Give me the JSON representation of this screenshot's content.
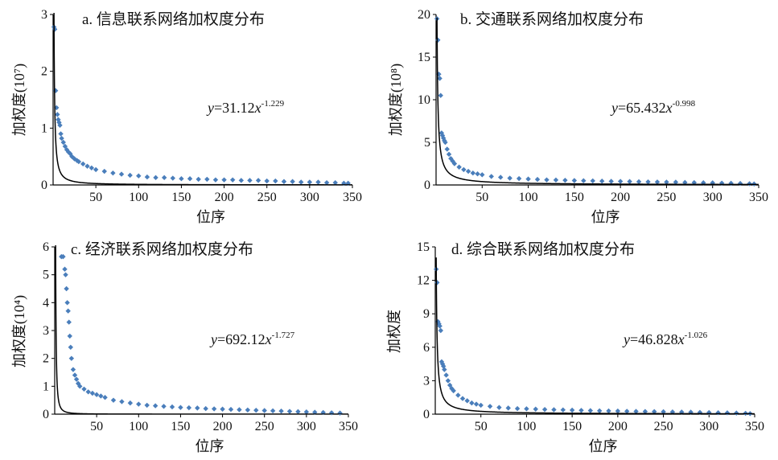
{
  "chart_data": [
    {
      "type": "scatter",
      "title": "a. 信息联系网络加权度分布",
      "xlabel": "位序",
      "ylabel": "加权度(10⁷)",
      "xlim": [
        0,
        350
      ],
      "ylim": [
        0,
        3
      ],
      "xticks": [
        50,
        100,
        150,
        200,
        250,
        300,
        350
      ],
      "yticks": [
        0,
        1,
        2,
        3
      ],
      "equation": {
        "lhs": "y",
        "eq": "=31.12",
        "var": "x",
        "exp": "-1.229"
      },
      "fit": {
        "a": 31.12,
        "b": -1.229,
        "scale": 0.1
      },
      "series": [
        {
          "x": [
            1,
            2,
            3,
            4,
            5,
            6,
            7,
            8,
            9,
            10,
            12,
            14,
            16,
            18,
            20,
            22,
            25,
            28,
            30,
            35,
            40,
            45,
            50,
            60,
            70,
            80,
            90,
            100,
            110,
            120,
            130,
            140,
            150,
            160,
            170,
            180,
            190,
            200,
            210,
            220,
            230,
            240,
            250,
            260,
            270,
            280,
            290,
            300,
            310,
            320,
            330,
            340,
            345
          ],
          "y": [
            2.78,
            2.74,
            1.66,
            1.36,
            1.24,
            1.15,
            1.1,
            1.05,
            0.9,
            0.82,
            0.75,
            0.68,
            0.62,
            0.58,
            0.55,
            0.5,
            0.46,
            0.43,
            0.41,
            0.37,
            0.33,
            0.3,
            0.27,
            0.24,
            0.21,
            0.19,
            0.17,
            0.16,
            0.14,
            0.13,
            0.13,
            0.12,
            0.11,
            0.11,
            0.1,
            0.1,
            0.09,
            0.09,
            0.09,
            0.08,
            0.08,
            0.08,
            0.07,
            0.07,
            0.06,
            0.06,
            0.05,
            0.05,
            0.05,
            0.04,
            0.04,
            0.03,
            0.03
          ]
        }
      ]
    },
    {
      "type": "scatter",
      "title": "b. 交通联系网络加权度分布",
      "xlabel": "位序",
      "ylabel": "加权度(10⁸)",
      "xlim": [
        0,
        350
      ],
      "ylim": [
        0,
        20
      ],
      "xticks": [
        50,
        100,
        150,
        200,
        250,
        300,
        350
      ],
      "yticks": [
        0,
        5,
        10,
        15,
        20
      ],
      "equation": {
        "lhs": "y",
        "eq": "=65.432",
        "var": "x",
        "exp": "-0.998"
      },
      "fit": {
        "a": 65.432,
        "b": -0.998,
        "scale": 0.3
      },
      "series": [
        {
          "x": [
            1,
            2,
            3,
            4,
            5,
            6,
            7,
            8,
            9,
            10,
            12,
            14,
            16,
            18,
            20,
            25,
            30,
            35,
            40,
            45,
            50,
            60,
            70,
            80,
            90,
            100,
            110,
            120,
            130,
            140,
            150,
            160,
            170,
            180,
            190,
            200,
            210,
            220,
            230,
            240,
            250,
            260,
            270,
            280,
            290,
            300,
            310,
            320,
            330,
            340,
            345
          ],
          "y": [
            19.5,
            17.0,
            13.0,
            12.5,
            10.5,
            6.1,
            5.8,
            5.5,
            5.2,
            5.0,
            4.2,
            3.6,
            3.1,
            2.8,
            2.5,
            2.1,
            1.8,
            1.6,
            1.4,
            1.3,
            1.2,
            1.0,
            0.9,
            0.8,
            0.75,
            0.7,
            0.65,
            0.6,
            0.58,
            0.55,
            0.52,
            0.5,
            0.48,
            0.45,
            0.43,
            0.42,
            0.4,
            0.38,
            0.36,
            0.35,
            0.34,
            0.33,
            0.3,
            0.28,
            0.26,
            0.25,
            0.22,
            0.2,
            0.18,
            0.15,
            0.12
          ]
        }
      ]
    },
    {
      "type": "scatter",
      "title": "c. 经济联系网络加权度分布",
      "xlabel": "位序",
      "ylabel": "加权度(10⁴)",
      "xlim": [
        0,
        350
      ],
      "ylim": [
        0,
        6
      ],
      "xticks": [
        50,
        100,
        150,
        200,
        250,
        300,
        350
      ],
      "yticks": [
        0,
        1,
        2,
        3,
        4,
        5,
        6
      ],
      "equation": {
        "lhs": "y",
        "eq": "=692.12",
        "var": "x",
        "exp": "-1.727"
      },
      "fit": {
        "a": 692.12,
        "b": -1.727,
        "scale": 0.01
      },
      "series": [
        {
          "x": [
            8,
            10,
            12,
            13,
            14,
            15,
            16,
            17,
            18,
            19,
            20,
            22,
            24,
            26,
            28,
            30,
            35,
            40,
            45,
            50,
            55,
            60,
            70,
            80,
            90,
            100,
            110,
            120,
            130,
            140,
            150,
            160,
            170,
            180,
            190,
            200,
            210,
            220,
            230,
            240,
            250,
            260,
            270,
            280,
            290,
            300,
            310,
            320,
            330,
            340
          ],
          "y": [
            5.65,
            5.65,
            5.2,
            5.0,
            4.5,
            4.0,
            3.7,
            3.3,
            2.8,
            2.4,
            2.0,
            1.6,
            1.4,
            1.25,
            1.1,
            1.0,
            0.9,
            0.8,
            0.75,
            0.7,
            0.65,
            0.6,
            0.5,
            0.45,
            0.4,
            0.36,
            0.32,
            0.3,
            0.28,
            0.26,
            0.24,
            0.23,
            0.22,
            0.2,
            0.19,
            0.18,
            0.17,
            0.16,
            0.15,
            0.14,
            0.13,
            0.12,
            0.11,
            0.1,
            0.09,
            0.08,
            0.07,
            0.06,
            0.05,
            0.04
          ]
        }
      ]
    },
    {
      "type": "scatter",
      "title": "d. 综合联系网络加权度分布",
      "xlabel": "位序",
      "ylabel": "加权度",
      "xlim": [
        0,
        350
      ],
      "ylim": [
        0,
        15
      ],
      "xticks": [
        50,
        100,
        150,
        200,
        250,
        300,
        350
      ],
      "yticks": [
        0,
        3,
        6,
        9,
        12,
        15
      ],
      "equation": {
        "lhs": "y",
        "eq": "=46.828",
        "var": "x",
        "exp": "-1.026"
      },
      "fit": {
        "a": 46.828,
        "b": -1.026,
        "scale": 0.3
      },
      "series": [
        {
          "x": [
            1,
            2,
            3,
            4,
            5,
            6,
            7,
            8,
            9,
            10,
            12,
            14,
            16,
            18,
            20,
            25,
            30,
            35,
            40,
            45,
            50,
            60,
            70,
            80,
            90,
            100,
            110,
            120,
            130,
            140,
            150,
            160,
            170,
            180,
            190,
            200,
            210,
            220,
            230,
            240,
            250,
            260,
            270,
            280,
            290,
            300,
            310,
            320,
            330,
            340,
            345
          ],
          "y": [
            13.0,
            11.8,
            8.3,
            8.1,
            7.9,
            7.5,
            4.7,
            4.5,
            4.3,
            4.0,
            3.5,
            3.0,
            2.6,
            2.3,
            2.1,
            1.7,
            1.4,
            1.2,
            1.0,
            0.9,
            0.8,
            0.7,
            0.6,
            0.55,
            0.5,
            0.48,
            0.45,
            0.42,
            0.4,
            0.38,
            0.36,
            0.34,
            0.32,
            0.3,
            0.29,
            0.28,
            0.26,
            0.25,
            0.24,
            0.23,
            0.22,
            0.2,
            0.19,
            0.18,
            0.16,
            0.15,
            0.13,
            0.12,
            0.1,
            0.08,
            0.05
          ]
        }
      ]
    }
  ],
  "style": {
    "marker_color": "#4a7ebb",
    "fit_color": "#000000",
    "axis_color": "#000000"
  }
}
